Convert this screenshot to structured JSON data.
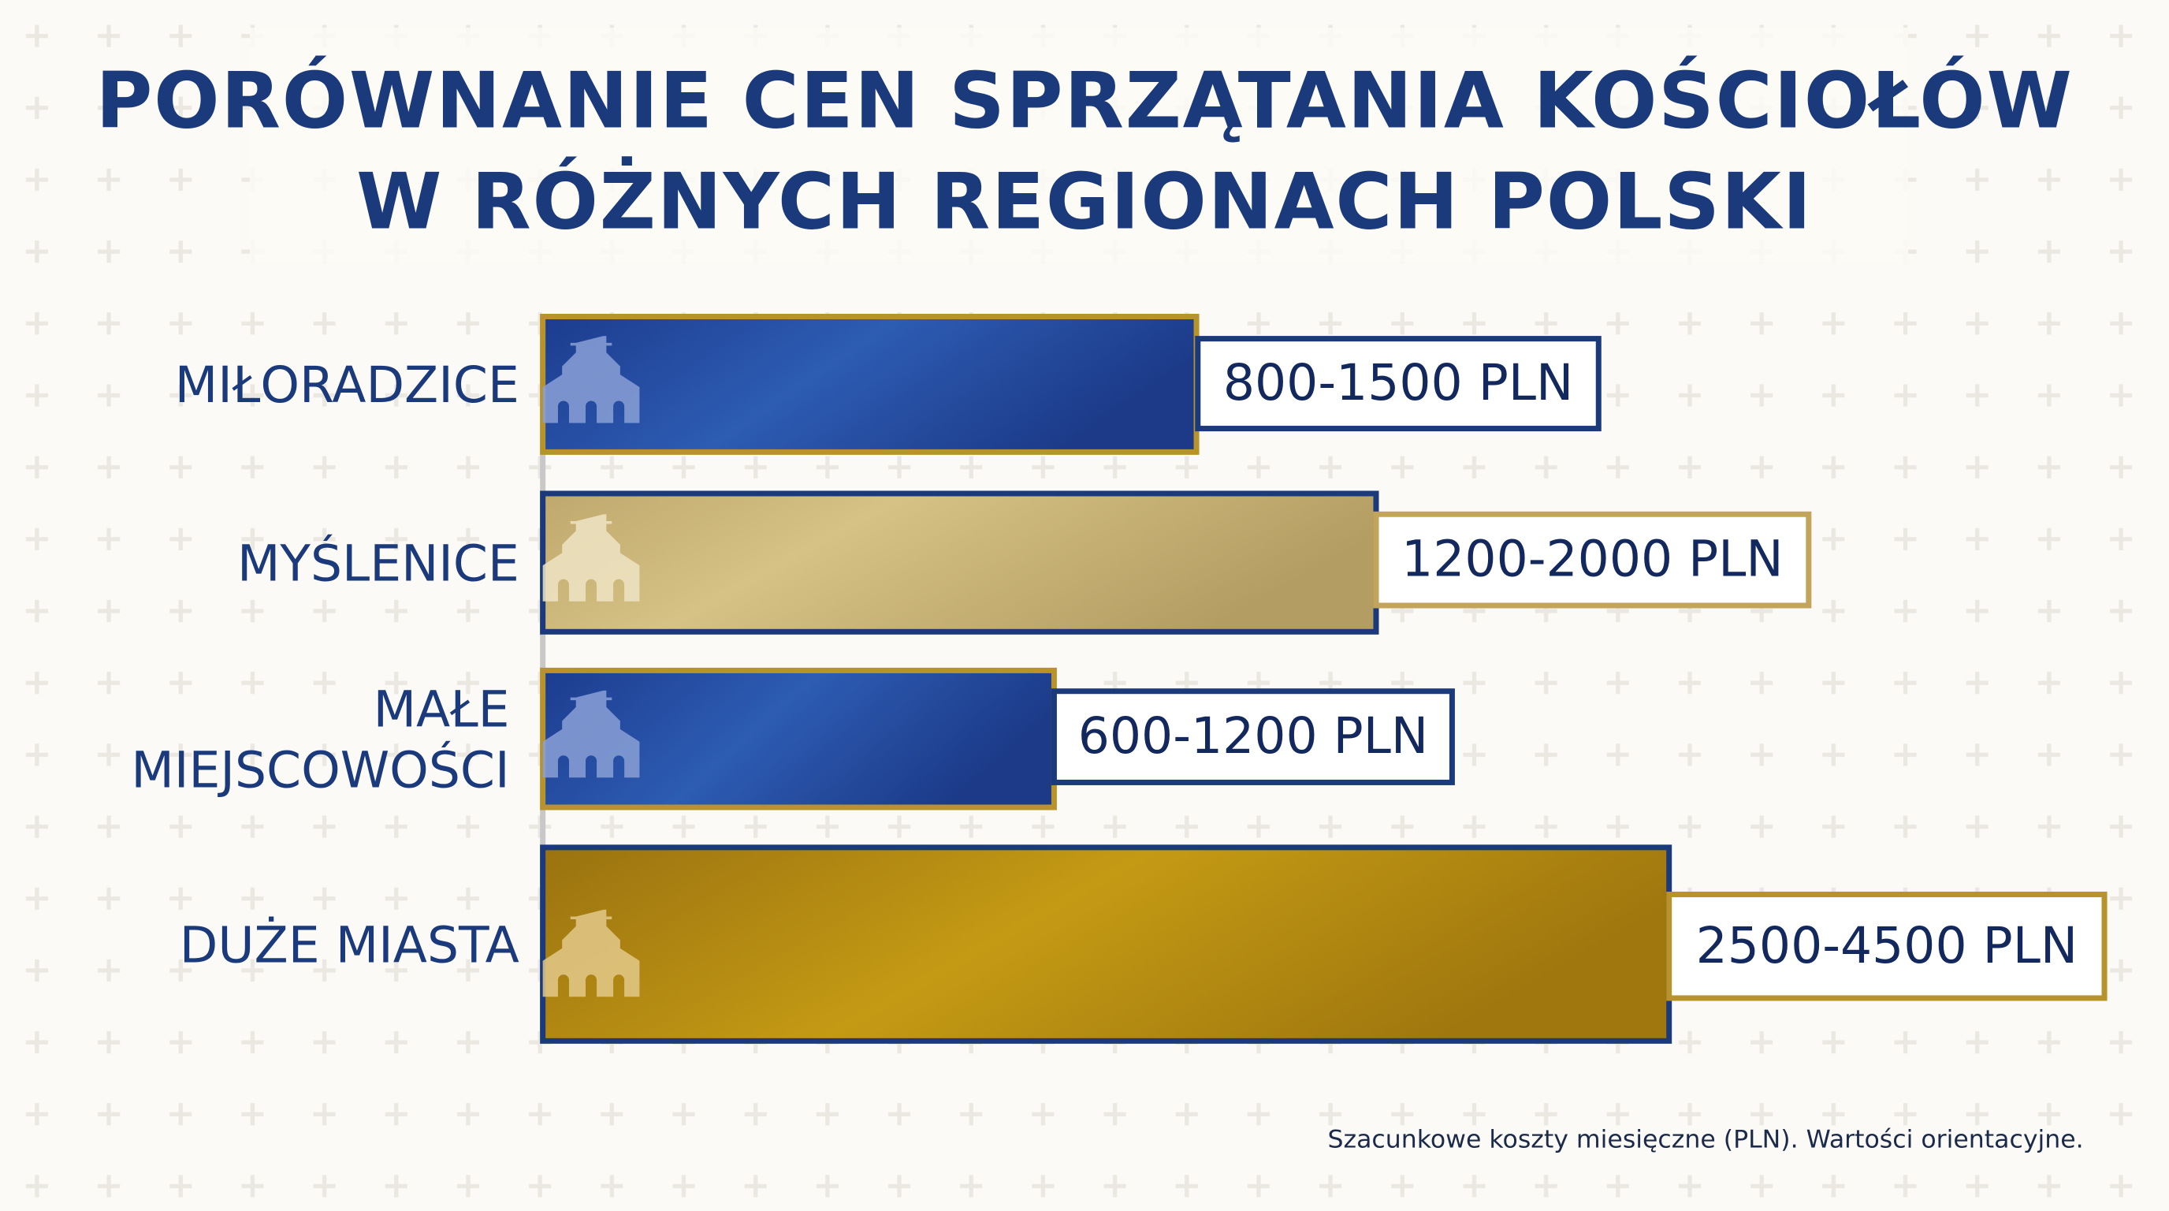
{
  "title": [
    "PORÓWNANIE CEN SPRZĄTANIA KOŚCIOŁÓW",
    "W RÓŻNYCH REGIONACH POLSKI"
  ],
  "rows": [
    {
      "label": [
        "MIŁORADZICE"
      ],
      "price": "800-1500 PLN"
    },
    {
      "label": [
        "MYŚLENICE"
      ],
      "price": "1200-2000 PLN"
    },
    {
      "label": [
        "MAŁE",
        "MIEJSCOWOŚCI"
      ],
      "price": "600-1200 PLN"
    },
    {
      "label": [
        "DUŻE MIASTA"
      ],
      "price": "2500-4500 PLN"
    }
  ],
  "footnote": "Szacunkowe koszty miesięczne (PLN). Wartości orientacyjne."
}
